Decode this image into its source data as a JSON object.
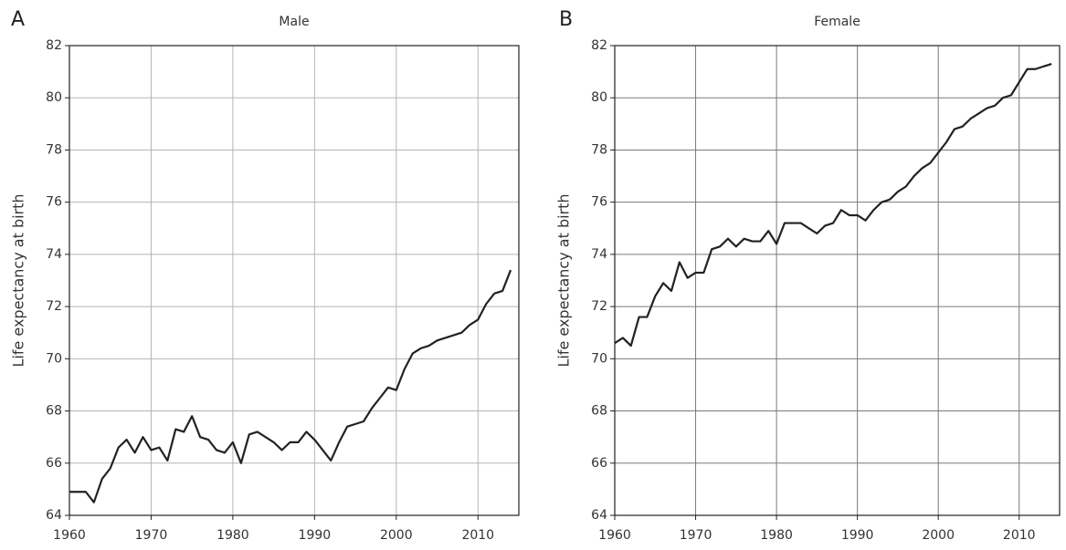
{
  "chart_data": [
    {
      "type": "line",
      "panel": "A",
      "title": "Male",
      "y_label": "Life expectancy at birth",
      "x": [
        1960,
        1961,
        1962,
        1963,
        1964,
        1965,
        1966,
        1967,
        1968,
        1969,
        1970,
        1971,
        1972,
        1973,
        1974,
        1975,
        1976,
        1977,
        1978,
        1979,
        1980,
        1981,
        1982,
        1983,
        1984,
        1985,
        1986,
        1987,
        1988,
        1989,
        1990,
        1991,
        1992,
        1993,
        1994,
        1995,
        1996,
        1997,
        1998,
        1999,
        2000,
        2001,
        2002,
        2003,
        2004,
        2005,
        2006,
        2007,
        2008,
        2009,
        2010,
        2011,
        2012,
        2013,
        2014
      ],
      "series": [
        {
          "color": "#222222",
          "values": [
            64.9,
            64.9,
            64.9,
            64.5,
            65.4,
            65.8,
            66.6,
            66.9,
            66.4,
            67.0,
            66.5,
            66.6,
            66.1,
            67.3,
            67.2,
            67.8,
            67.0,
            66.9,
            66.5,
            66.4,
            66.8,
            66.0,
            67.1,
            67.2,
            67.0,
            66.8,
            66.5,
            66.8,
            66.8,
            67.2,
            66.9,
            66.5,
            66.1,
            66.8,
            67.4,
            67.5,
            67.6,
            68.1,
            68.5,
            68.9,
            68.8,
            69.6,
            70.2,
            70.4,
            70.5,
            70.7,
            70.8,
            70.9,
            71.0,
            71.3,
            71.5,
            72.1,
            72.5,
            72.6,
            73.4
          ]
        }
      ],
      "xlim": [
        1960,
        2015
      ],
      "xticks": [
        1960,
        1970,
        1980,
        1990,
        2000,
        2010
      ],
      "ylim": [
        64,
        82
      ],
      "yticks": [
        64,
        66,
        68,
        70,
        72,
        74,
        76,
        78,
        80,
        82
      ],
      "grid": true,
      "grid_color": "#b5b5b5"
    },
    {
      "type": "line",
      "panel": "B",
      "title": "Female",
      "y_label": "Life expectancy at birth",
      "x": [
        1960,
        1961,
        1962,
        1963,
        1964,
        1965,
        1966,
        1967,
        1968,
        1969,
        1970,
        1971,
        1972,
        1973,
        1974,
        1975,
        1976,
        1977,
        1978,
        1979,
        1980,
        1981,
        1982,
        1983,
        1984,
        1985,
        1986,
        1987,
        1988,
        1989,
        1990,
        1991,
        1992,
        1993,
        1994,
        1995,
        1996,
        1997,
        1998,
        1999,
        2000,
        2001,
        2002,
        2003,
        2004,
        2005,
        2006,
        2007,
        2008,
        2009,
        2010,
        2011,
        2012,
        2013,
        2014
      ],
      "series": [
        {
          "color": "#222222",
          "values": [
            70.6,
            70.8,
            70.5,
            71.6,
            71.6,
            72.4,
            72.9,
            72.6,
            73.7,
            73.1,
            73.3,
            73.3,
            74.2,
            74.3,
            74.6,
            74.3,
            74.6,
            74.5,
            74.5,
            74.9,
            74.4,
            75.2,
            75.2,
            75.2,
            75.0,
            74.8,
            75.1,
            75.2,
            75.7,
            75.5,
            75.5,
            75.3,
            75.7,
            76.0,
            76.1,
            76.4,
            76.6,
            77.0,
            77.3,
            77.5,
            77.9,
            78.3,
            78.8,
            78.9,
            79.2,
            79.4,
            79.6,
            79.7,
            80.0,
            80.1,
            80.6,
            81.1,
            81.1,
            81.2,
            81.3
          ]
        }
      ],
      "xlim": [
        1960,
        2015
      ],
      "xticks": [
        1960,
        1970,
        1980,
        1990,
        2000,
        2010
      ],
      "ylim": [
        64,
        82
      ],
      "yticks": [
        64,
        66,
        68,
        70,
        72,
        74,
        76,
        78,
        80,
        82
      ],
      "grid": true,
      "grid_color": "#7a7a7a"
    }
  ]
}
